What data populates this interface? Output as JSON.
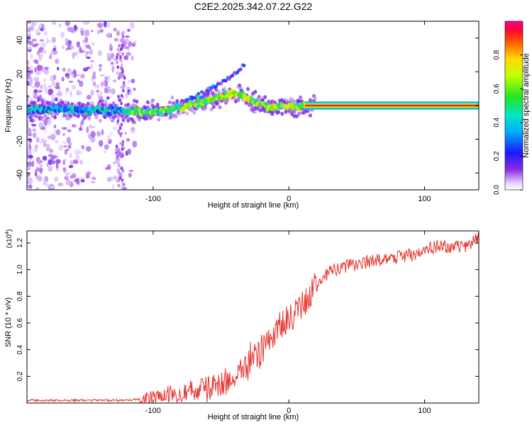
{
  "title": "C2E2.2025.342.07.22.G22",
  "chart_data": [
    {
      "type": "heatmap",
      "name": "spectrogram",
      "xlabel": "Height of straight line (km)",
      "ylabel": "Frequency (Hz)",
      "xlim": [
        -193,
        140
      ],
      "ylim": [
        -50,
        50
      ],
      "x_ticks": [
        "-100",
        "0",
        "100"
      ],
      "x_tick_values": [
        -100,
        0,
        100
      ],
      "y_ticks": [
        "40",
        "20",
        "0",
        "-20",
        "-40"
      ],
      "y_tick_values": [
        40,
        20,
        0,
        -20,
        -40
      ],
      "ridge": {
        "x": [
          -193,
          -170,
          -150,
          -130,
          -110,
          -90,
          -75,
          -60,
          -50,
          -40,
          -35,
          -25,
          -15,
          -5,
          5,
          15,
          140
        ],
        "y": [
          -3,
          -2,
          -3,
          -3,
          -4,
          -3,
          0,
          3,
          5,
          7,
          6,
          2,
          -1,
          0,
          -1,
          0,
          0
        ]
      },
      "colorbar": {
        "label": "Normalized spectral amplitude",
        "range": [
          0,
          1
        ],
        "ticks": [
          "0.0",
          "0.2",
          "0.4",
          "0.6",
          "0.8"
        ],
        "tick_values": [
          0.0,
          0.2,
          0.4,
          0.6,
          0.8
        ]
      }
    },
    {
      "type": "line",
      "name": "snr",
      "xlabel": "Height of straight line (km)",
      "ylabel": "SNR (10 * v/v)",
      "multiplier_label": "(x10",
      "multiplier_exp": "4",
      "multiplier_close": ")",
      "xlim": [
        -193,
        140
      ],
      "ylim": [
        0,
        1.29
      ],
      "x_ticks": [
        "-100",
        "0",
        "100"
      ],
      "x_tick_values": [
        -100,
        0,
        100
      ],
      "y_ticks": [
        "0.2",
        "0.4",
        "0.6",
        "0.8",
        "1.0",
        "1.2"
      ],
      "y_tick_values": [
        0.2,
        0.4,
        0.6,
        0.8,
        1.0,
        1.2
      ],
      "color": "#e8332e",
      "trend": {
        "x": [
          -193,
          -150,
          -120,
          -100,
          -85,
          -70,
          -55,
          -45,
          -35,
          -28,
          -22,
          -15,
          -8,
          0,
          8,
          15,
          22,
          30,
          40,
          60,
          80,
          100,
          110,
          120,
          130,
          140
        ],
        "y": [
          0.02,
          0.02,
          0.02,
          0.04,
          0.07,
          0.1,
          0.12,
          0.17,
          0.24,
          0.3,
          0.37,
          0.48,
          0.55,
          0.63,
          0.7,
          0.8,
          0.9,
          0.98,
          1.02,
          1.06,
          1.09,
          1.14,
          1.18,
          1.16,
          1.18,
          1.24
        ]
      }
    }
  ]
}
